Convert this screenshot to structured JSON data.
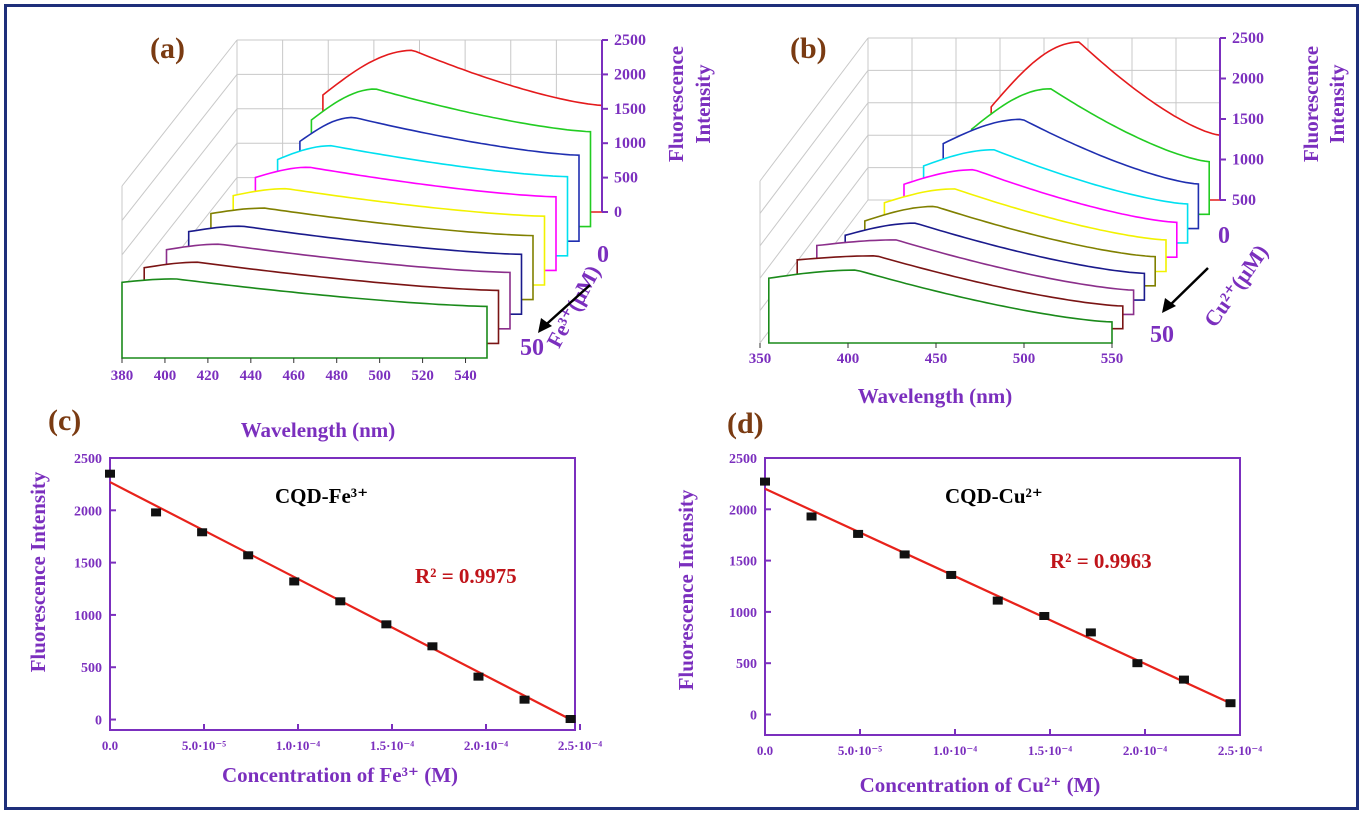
{
  "colors": {
    "axis_purple": "#7b2fbe",
    "panel_label": "#7a3b12",
    "fit_red": "#e8221b",
    "r2_red": "#c0141a",
    "grid": "#c8c8c8",
    "curves": [
      "#e41a1c",
      "#22cc22",
      "#1f2fb0",
      "#00e0f0",
      "#ff00ff",
      "#f2f200",
      "#808000",
      "#1a1a8c",
      "#8b2f8b",
      "#7a1414",
      "#1a8a1a"
    ]
  },
  "panels": {
    "a": {
      "label": "(a)",
      "x_label": "Wavelength (nm)",
      "z_label_line1": "Fluorescence",
      "z_label_line2": "Intensity",
      "depth_label": "Fe³⁺(μM)",
      "depth_ticks": [
        "0",
        "50"
      ],
      "x_ticks": [
        "380",
        "400",
        "420",
        "440",
        "460",
        "480",
        "500",
        "520",
        "540"
      ],
      "z_ticks": [
        "0",
        "500",
        "1000",
        "1500",
        "2000",
        "2500"
      ]
    },
    "b": {
      "label": "(b)",
      "x_label": "Wavelength (nm)",
      "z_label_line1": "Fluorescence",
      "z_label_line2": "Intensity",
      "depth_label": "Cu²⁺(μM)",
      "depth_ticks": [
        "0",
        "50"
      ],
      "x_ticks": [
        "350",
        "400",
        "450",
        "500",
        "550"
      ],
      "z_ticks": [
        "500",
        "1000",
        "1500",
        "2000",
        "2500"
      ]
    },
    "c": {
      "label": "(c)",
      "annotation": "CQD-Fe³⁺",
      "r2": "R² = 0.9975",
      "x_label": "Concentration of Fe³⁺ (M)",
      "y_label": "Fluorescence Intensity",
      "x_tick_labels": [
        "0.0",
        "5.0·10⁻⁵",
        "1.0·10⁻⁴",
        "1.5·10⁻⁴",
        "2.0·10⁻⁴",
        "2.5·10⁻⁴"
      ],
      "y_tick_labels": [
        "0",
        "500",
        "1000",
        "1500",
        "2000",
        "2500"
      ]
    },
    "d": {
      "label": "(d)",
      "annotation": "CQD-Cu²⁺",
      "r2": "R² = 0.9963",
      "x_label": "Concentration of Cu²⁺ (M)",
      "y_label": "Fluorescence Intensity",
      "x_tick_labels": [
        "0.0",
        "5.0·10⁻⁵",
        "1.0·10⁻⁴",
        "1.5·10⁻⁴",
        "2.0·10⁻⁴",
        "2.5·10⁻⁴"
      ],
      "y_tick_labels": [
        "0",
        "500",
        "1000",
        "1500",
        "2000",
        "2500"
      ]
    }
  },
  "chart_data": [
    {
      "panel": "a",
      "type": "line",
      "x_range": [
        380,
        550
      ],
      "z_range": [
        0,
        2500
      ],
      "depth_range": [
        0,
        50
      ],
      "series": [
        {
          "values": [
            [
              420,
              1700
            ],
            [
              462,
              2350
            ],
            [
              550,
              1550
            ]
          ]
        },
        {
          "values": [
            [
              420,
              1550
            ],
            [
              450,
              2000
            ],
            [
              550,
              1380
            ]
          ]
        },
        {
          "values": [
            [
              420,
              1450
            ],
            [
              445,
              1800
            ],
            [
              550,
              1250
            ]
          ]
        },
        {
          "values": [
            [
              415,
              1400
            ],
            [
              440,
              1600
            ],
            [
              550,
              1150
            ]
          ]
        },
        {
          "values": [
            [
              410,
              1350
            ],
            [
              435,
              1500
            ],
            [
              550,
              1070
            ]
          ]
        },
        {
          "values": [
            [
              405,
              1300
            ],
            [
              430,
              1400
            ],
            [
              550,
              1000
            ]
          ]
        },
        {
          "values": [
            [
              400,
              1250
            ],
            [
              425,
              1330
            ],
            [
              550,
              930
            ]
          ]
        },
        {
          "values": [
            [
              395,
              1200
            ],
            [
              420,
              1280
            ],
            [
              550,
              870
            ]
          ]
        },
        {
          "values": [
            [
              390,
              1150
            ],
            [
              415,
              1230
            ],
            [
              550,
              820
            ]
          ]
        },
        {
          "values": [
            [
              385,
              1100
            ],
            [
              410,
              1180
            ],
            [
              550,
              770
            ]
          ]
        },
        {
          "values": [
            [
              380,
              1100
            ],
            [
              405,
              1150
            ],
            [
              550,
              750
            ]
          ]
        }
      ]
    },
    {
      "panel": "b",
      "type": "line",
      "x_range": [
        350,
        550
      ],
      "z_range": [
        500,
        2500
      ],
      "depth_range": [
        0,
        50
      ],
      "series": [
        {
          "values": [
            [
              420,
              1650
            ],
            [
              470,
              2450
            ],
            [
              550,
              1300
            ]
          ]
        },
        {
          "values": [
            [
              415,
              1550
            ],
            [
              460,
              2050
            ],
            [
              550,
              1150
            ]
          ]
        },
        {
          "values": [
            [
              405,
              1550
            ],
            [
              450,
              1850
            ],
            [
              550,
              1050
            ]
          ]
        },
        {
          "values": [
            [
              400,
              1450
            ],
            [
              440,
              1650
            ],
            [
              550,
              980
            ]
          ]
        },
        {
          "values": [
            [
              395,
              1400
            ],
            [
              435,
              1580
            ],
            [
              550,
              930
            ]
          ]
        },
        {
          "values": [
            [
              390,
              1350
            ],
            [
              430,
              1520
            ],
            [
              550,
              890
            ]
          ]
        },
        {
          "values": [
            [
              385,
              1300
            ],
            [
              425,
              1480
            ],
            [
              550,
              860
            ]
          ]
        },
        {
          "values": [
            [
              380,
              1300
            ],
            [
              420,
              1450
            ],
            [
              550,
              830
            ]
          ]
        },
        {
          "values": [
            [
              370,
              1350
            ],
            [
              415,
              1420
            ],
            [
              550,
              800
            ]
          ]
        },
        {
          "values": [
            [
              365,
              1350
            ],
            [
              410,
              1400
            ],
            [
              550,
              780
            ]
          ]
        },
        {
          "values": [
            [
              355,
              1300
            ],
            [
              405,
              1400
            ],
            [
              550,
              760
            ]
          ]
        }
      ]
    },
    {
      "panel": "c",
      "type": "scatter",
      "x_range": [
        0,
        0.00025
      ],
      "y_range": [
        -100,
        2500
      ],
      "points": [
        [
          0.0,
          2350
        ],
        [
          2.45e-05,
          1980
        ],
        [
          4.9e-05,
          1790
        ],
        [
          7.35e-05,
          1570
        ],
        [
          9.8e-05,
          1320
        ],
        [
          0.0001225,
          1130
        ],
        [
          0.000147,
          910
        ],
        [
          0.0001715,
          700
        ],
        [
          0.000196,
          410
        ],
        [
          0.0002205,
          190
        ],
        [
          0.000245,
          5
        ]
      ],
      "fit_line": [
        [
          0.0,
          2270
        ],
        [
          0.000245,
          0
        ]
      ],
      "r2": 0.9975
    },
    {
      "panel": "d",
      "type": "scatter",
      "x_range": [
        0,
        0.00025
      ],
      "y_range": [
        -200,
        2500
      ],
      "points": [
        [
          0.0,
          2270
        ],
        [
          2.45e-05,
          1930
        ],
        [
          4.9e-05,
          1760
        ],
        [
          7.35e-05,
          1560
        ],
        [
          9.8e-05,
          1360
        ],
        [
          0.0001225,
          1110
        ],
        [
          0.000147,
          960
        ],
        [
          0.0001715,
          800
        ],
        [
          0.000196,
          500
        ],
        [
          0.0002205,
          340
        ],
        [
          0.000245,
          110
        ]
      ],
      "fit_line": [
        [
          0.0,
          2200
        ],
        [
          0.000245,
          110
        ]
      ],
      "r2": 0.9963
    }
  ]
}
